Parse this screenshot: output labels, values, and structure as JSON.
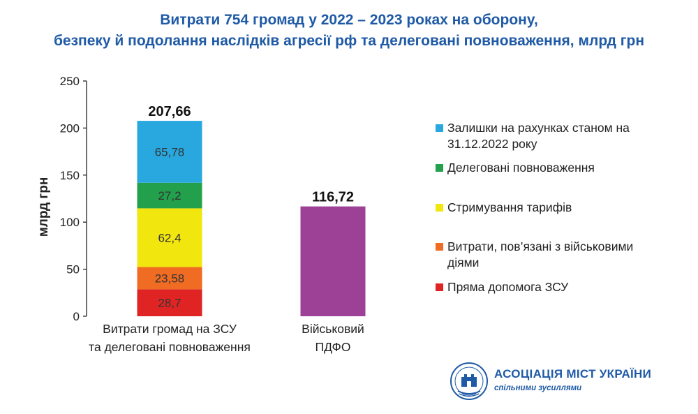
{
  "title_line1": "Витрати 754 громад у 2022 – 2023 роках на оборону,",
  "title_line2": "безпеку й подолання наслідків агресії рф та делеговані повноваження, млрд грн",
  "organization": {
    "name": "АСОЦІАЦІЯ МІСТ УКРАЇНИ",
    "slogan": "спільними зусиллями"
  },
  "colors": {
    "title": "#1f5aa6",
    "axis": "#222222"
  },
  "chart_data": {
    "type": "bar",
    "stacked": true,
    "ylabel": "млрд грн",
    "ylim": [
      0,
      250
    ],
    "yticks": [
      0,
      50,
      100,
      150,
      200,
      250
    ],
    "grid": false,
    "legend_position": "right",
    "categories": [
      [
        "Витрати громад на ЗСУ",
        "та делеговані повноваження"
      ],
      [
        "Військовий",
        "ПДФО"
      ]
    ],
    "series": [
      {
        "name": "Пряма допомога ЗСУ",
        "color": "#e02424",
        "values": [
          28.7,
          null
        ],
        "labels": [
          "28,7",
          null
        ]
      },
      {
        "name": "Витрати, пов’язані з військовими діями",
        "color": "#ef6c22",
        "values": [
          23.58,
          null
        ],
        "labels": [
          "23,58",
          null
        ]
      },
      {
        "name": "Стримування тарифів",
        "color": "#f2e60f",
        "values": [
          62.4,
          null
        ],
        "labels": [
          "62,4",
          null
        ]
      },
      {
        "name": "Делеговані повноваження",
        "color": "#22a04b",
        "values": [
          27.2,
          null
        ],
        "labels": [
          "27,2",
          null
        ]
      },
      {
        "name": "Залишки на рахунках станом на 31.12.2022 року",
        "color": "#29a8e0",
        "values": [
          65.78,
          null
        ],
        "labels": [
          "65,78",
          null
        ]
      },
      {
        "name": "Військовий ПДФО",
        "color": "#9c4196",
        "values": [
          null,
          116.72
        ],
        "labels": [
          null,
          null
        ]
      }
    ],
    "totals": [
      "207,66",
      "116,72"
    ],
    "legend": [
      {
        "lines": [
          "Залишки на рахунках станом на",
          "31.12.2022 року"
        ],
        "color": "#29a8e0"
      },
      {
        "lines": [
          "Делеговані повноваження"
        ],
        "color": "#22a04b"
      },
      {
        "lines": [
          "Стримування тарифів"
        ],
        "color": "#f2e60f"
      },
      {
        "lines": [
          "Витрати, пов’язані з військовими",
          "діями"
        ],
        "color": "#ef6c22"
      },
      {
        "lines": [
          "Пряма допомога ЗСУ"
        ],
        "color": "#e02424"
      }
    ]
  }
}
